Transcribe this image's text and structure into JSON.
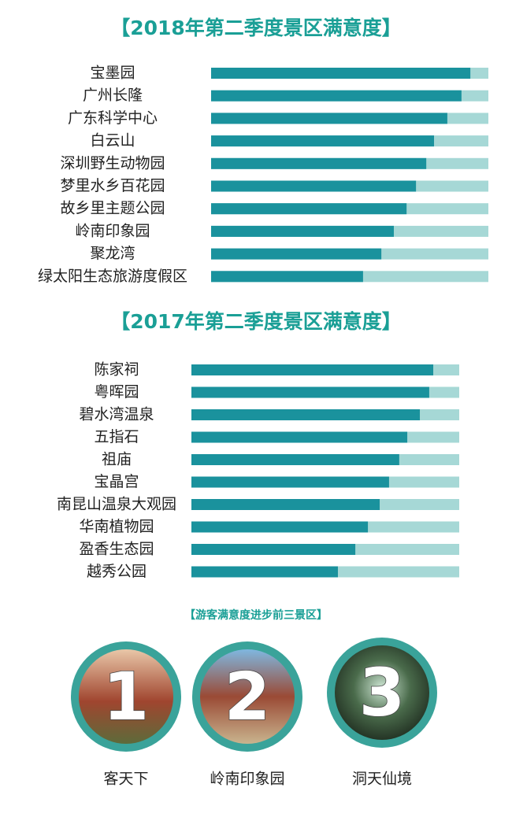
{
  "chart_data": [
    {
      "type": "bar",
      "orientation": "horizontal",
      "title": "【2018年第二季度景区满意度】",
      "categories": [
        "宝墨园",
        "广州长隆",
        "广东科学中心",
        "白云山",
        "深圳野生动物园",
        "梦里水乡百花园",
        "故乡里主题公园",
        "岭南印象园",
        "聚龙湾",
        "绿太阳生态旅游度假区"
      ],
      "values": [
        93.5,
        90.3,
        85.2,
        80.4,
        77.6,
        73.9,
        70.5,
        65.9,
        61.4,
        54.8
      ],
      "xlim": [
        0,
        100
      ],
      "color": "#1a929d",
      "track_color": "#a6d8d6"
    },
    {
      "type": "bar",
      "orientation": "horizontal",
      "title": "【2017年第二季度景区满意度】",
      "categories": [
        "陈家祠",
        "粤晖园",
        "碧水湾温泉",
        "五指石",
        "祖庙",
        "宝晶宫",
        "南昆山温泉大观园",
        "华南植物园",
        "盈香生态园",
        "越秀公园"
      ],
      "values": [
        90.3,
        88.8,
        85.3,
        80.6,
        77.6,
        73.8,
        70.3,
        65.9,
        61.2,
        54.7
      ],
      "xlim": [
        0,
        100
      ],
      "color": "#1a929d",
      "track_color": "#a6d8d6"
    }
  ],
  "top_three": {
    "title": "【游客满意度进步前三景区】",
    "items": [
      {
        "rank": 1,
        "name": "客天下"
      },
      {
        "rank": 2,
        "name": "岭南印象园"
      },
      {
        "rank": 3,
        "name": "洞天仙境"
      }
    ]
  }
}
